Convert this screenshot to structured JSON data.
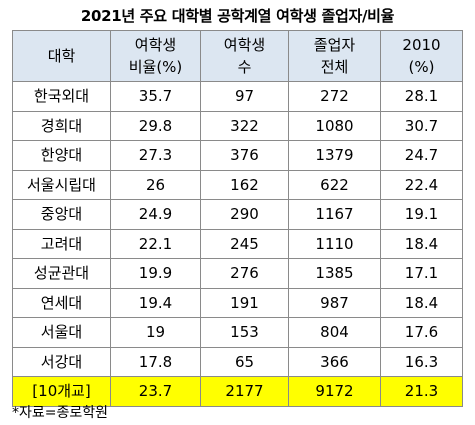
{
  "title": "2021년 주요 대학별 공학계열 여학생 졸업자/비율",
  "headers": [
    {
      "lines": [
        "대학"
      ]
    },
    {
      "lines": [
        "여학생",
        "비율(%)"
      ]
    },
    {
      "lines": [
        "여학생",
        "수"
      ]
    },
    {
      "lines": [
        "졸업자",
        "전체"
      ]
    },
    {
      "lines": [
        "2010",
        "(%)"
      ]
    }
  ],
  "rows": [
    [
      "한국외대",
      "35.7",
      "97",
      "272",
      "28.1"
    ],
    [
      "경희대",
      "29.8",
      "322",
      "1080",
      "30.7"
    ],
    [
      "한양대",
      "27.3",
      "376",
      "1379",
      "24.7"
    ],
    [
      "서울시립대",
      "26",
      "162",
      "622",
      "22.4"
    ],
    [
      "중앙대",
      "24.9",
      "290",
      "1167",
      "19.1"
    ],
    [
      "고려대",
      "22.1",
      "245",
      "1110",
      "18.4"
    ],
    [
      "성균관대",
      "19.9",
      "276",
      "1385",
      "17.1"
    ],
    [
      "연세대",
      "19.4",
      "191",
      "987",
      "18.4"
    ],
    [
      "서울대",
      "19",
      "153",
      "804",
      "17.6"
    ],
    [
      "서강대",
      "17.8",
      "65",
      "366",
      "16.3"
    ]
  ],
  "total": [
    "[10개교]",
    "23.7",
    "2177",
    "9172",
    "21.3"
  ],
  "colors": {
    "header_bg": "#dce6f1",
    "total_bg": "#ffff00",
    "border": "#8a8a8a"
  },
  "source": "*자료=종로학원"
}
